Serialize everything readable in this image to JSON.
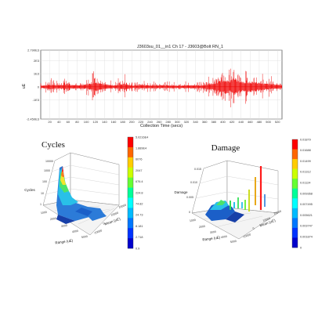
{
  "chart_data": [
    {
      "type": "line",
      "title": "J3603su_01__in1 Ch 17 - J3603@Bolt RN_1",
      "xlabel": "Collection Time (secs)",
      "ylabel": "uE",
      "xlim": [
        0,
        530
      ],
      "ylim": [
        -2450,
        2790
      ],
      "x_ticks": [
        "20",
        "40",
        "60",
        "80",
        "100",
        "120",
        "140",
        "160",
        "180",
        "200",
        "220",
        "240",
        "260",
        "280",
        "300",
        "320",
        "340",
        "360",
        "380",
        "400",
        "420",
        "440",
        "460",
        "480",
        "500",
        "520"
      ],
      "y_ticks": [
        "2.790E3",
        "2E3",
        "1E3",
        "0",
        "-1E3",
        "-2.450E3"
      ],
      "grid": true,
      "series": [
        {
          "color": "#ee0000",
          "envelope_max": [
            [
              0,
              300
            ],
            [
              20,
              700
            ],
            [
              35,
              500
            ],
            [
              55,
              700
            ],
            [
              75,
              500
            ],
            [
              100,
              700
            ],
            [
              120,
              1300
            ],
            [
              140,
              800
            ],
            [
              160,
              400
            ],
            [
              185,
              1000
            ],
            [
              200,
              350
            ],
            [
              220,
              600
            ],
            [
              245,
              400
            ],
            [
              265,
              500
            ],
            [
              285,
              400
            ],
            [
              300,
              350
            ],
            [
              330,
              500
            ],
            [
              350,
              400
            ],
            [
              365,
              700
            ],
            [
              380,
              1000
            ],
            [
              395,
              1800
            ],
            [
              405,
              2200
            ],
            [
              415,
              1600
            ],
            [
              425,
              2790
            ],
            [
              435,
              1700
            ],
            [
              445,
              1400
            ],
            [
              465,
              1500
            ],
            [
              490,
              1000
            ],
            [
              510,
              800
            ],
            [
              530,
              600
            ]
          ],
          "envelope_min": [
            [
              0,
              -300
            ],
            [
              20,
              -700
            ],
            [
              35,
              -500
            ],
            [
              55,
              -600
            ],
            [
              75,
              -500
            ],
            [
              100,
              -600
            ],
            [
              120,
              -1300
            ],
            [
              140,
              -700
            ],
            [
              160,
              -400
            ],
            [
              185,
              -900
            ],
            [
              200,
              -350
            ],
            [
              220,
              -500
            ],
            [
              245,
              -400
            ],
            [
              265,
              -400
            ],
            [
              285,
              -400
            ],
            [
              300,
              -350
            ],
            [
              330,
              -500
            ],
            [
              350,
              -400
            ],
            [
              365,
              -700
            ],
            [
              380,
              -1000
            ],
            [
              395,
              -1700
            ],
            [
              405,
              -2100
            ],
            [
              415,
              -1500
            ],
            [
              425,
              -2450
            ],
            [
              435,
              -1500
            ],
            [
              445,
              -1300
            ],
            [
              465,
              -1500
            ],
            [
              490,
              -900
            ],
            [
              510,
              -700
            ],
            [
              530,
              -500
            ]
          ]
        }
      ]
    },
    {
      "type": "bar3d",
      "title": "Cycles",
      "zlabel": "Cycles",
      "xlabel": "Range (uE)",
      "ylabel": "Mean (uE)",
      "z_ticks": [
        "1",
        "10",
        "100",
        "1000",
        "10000"
      ],
      "x_ticks": [
        "1000",
        "2000",
        "3000",
        "4000",
        "5000"
      ],
      "y_ticks": [
        "-10000",
        "0",
        "10000",
        "20000"
      ],
      "colorbar": {
        "labels": [
          "5.0216E4",
          "1.889E4",
          "6076",
          "2047",
          "676.4",
          "224.8",
          "74.82",
          "24.73",
          "8.181",
          "2.718",
          "0.9"
        ],
        "colors": [
          "#ff0000",
          "#ff6600",
          "#ffcc00",
          "#ccff00",
          "#66ff33",
          "#00ff99",
          "#00ffff",
          "#00bbff",
          "#0077ff",
          "#0033ff",
          "#0000cc"
        ]
      }
    },
    {
      "type": "bar3d",
      "title": "Damage",
      "zlabel": "Damage",
      "xlabel": "Range (uE)",
      "ylabel": "Mean (uE)",
      "z_ticks": [
        "0",
        "0.005",
        "0.010",
        "0.015"
      ],
      "x_ticks": [
        "1000",
        "2000",
        "3000",
        "4000",
        "5000"
      ],
      "y_ticks": [
        "-10000",
        "0",
        "10000",
        "20000"
      ],
      "colorbar": {
        "labels": [
          "0.01879",
          "0.01688",
          "0.01499",
          "0.01312",
          "0.01124",
          "0.009368",
          "0.007495",
          "0.005621",
          "0.003747",
          "0.001874",
          "0"
        ],
        "colors": [
          "#ff0000",
          "#ff6600",
          "#ffcc00",
          "#ccff00",
          "#66ff33",
          "#00ff99",
          "#00ffff",
          "#00bbff",
          "#0077ff",
          "#0033ff",
          "#0000cc"
        ]
      }
    }
  ]
}
